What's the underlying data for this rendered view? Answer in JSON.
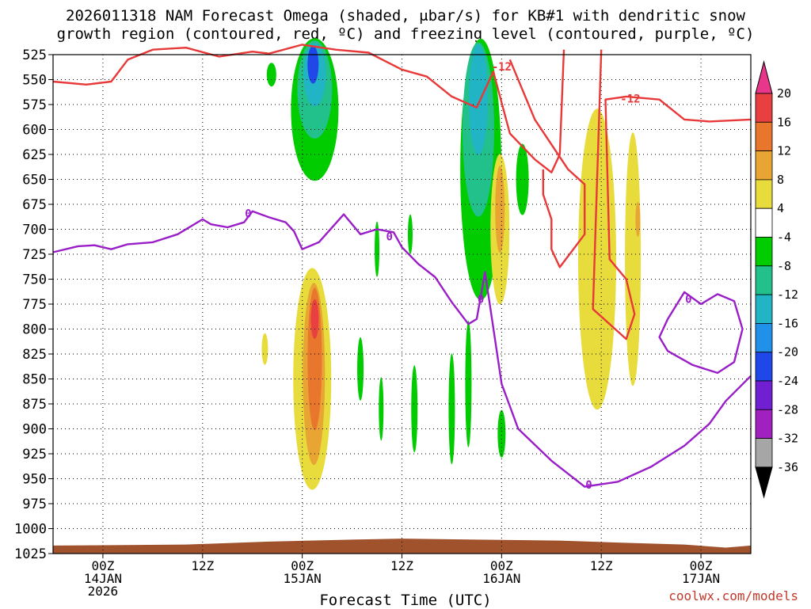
{
  "title_line1": "2026011318 NAM Forecast Omega (shaded, μbar/s) for KB#1 with dendritic snow",
  "title_line2": "growth region (contoured, red, ºC) and freezing level (contoured, purple, ºC)",
  "credit": "coolwx.com/models",
  "chart_data": {
    "type": "heatmap",
    "xlabel": "Forecast Time (UTC)",
    "ylabel": "",
    "y_axis_reversed": true,
    "ylim": [
      525,
      1025
    ],
    "xlim_hours_from_00z_14jan": [
      -6,
      78
    ],
    "grid": true,
    "y_ticks": [
      525,
      550,
      575,
      600,
      625,
      650,
      675,
      700,
      725,
      750,
      775,
      800,
      825,
      850,
      875,
      900,
      925,
      950,
      975,
      1000,
      1025
    ],
    "x_ticks": [
      {
        "hour": 0,
        "line1": "00Z",
        "line2": "14JAN",
        "line3": "2026"
      },
      {
        "hour": 12,
        "line1": "12Z",
        "line2": "",
        "line3": ""
      },
      {
        "hour": 24,
        "line1": "00Z",
        "line2": "15JAN",
        "line3": ""
      },
      {
        "hour": 36,
        "line1": "12Z",
        "line2": "",
        "line3": ""
      },
      {
        "hour": 48,
        "line1": "00Z",
        "line2": "16JAN",
        "line3": ""
      },
      {
        "hour": 60,
        "line1": "12Z",
        "line2": "",
        "line3": ""
      },
      {
        "hour": 72,
        "line1": "00Z",
        "line2": "17JAN",
        "line3": ""
      }
    ],
    "colorbar": {
      "labels": [
        "20",
        "16",
        "12",
        "8",
        "4",
        "-4",
        "-8",
        "-12",
        "-16",
        "-20",
        "-24",
        "-28",
        "-32",
        "-36"
      ],
      "colors": [
        "#e8378a",
        "#e84040",
        "#e8772d",
        "#e8a534",
        "#e8dc3c",
        "#ffffff",
        "#00cc00",
        "#22c08a",
        "#20b4c4",
        "#2090e8",
        "#2048e8",
        "#7020d0",
        "#a020c0",
        "#a6a6a6",
        "#000000"
      ]
    },
    "series": [
      {
        "name": "Freezing level (0 ºC)",
        "color": "#9a1ec8",
        "points": [
          [
            -6,
            723
          ],
          [
            -3,
            717
          ],
          [
            -1,
            716
          ],
          [
            1,
            720
          ],
          [
            3,
            715
          ],
          [
            6,
            713
          ],
          [
            9,
            705
          ],
          [
            12,
            690
          ],
          [
            13,
            695
          ],
          [
            15,
            698
          ],
          [
            17,
            693
          ],
          [
            18,
            682
          ],
          [
            20,
            688
          ],
          [
            22,
            693
          ],
          [
            23,
            702
          ],
          [
            24,
            720
          ],
          [
            26,
            713
          ],
          [
            29,
            685
          ],
          [
            31,
            705
          ],
          [
            33,
            700
          ],
          [
            35,
            703
          ],
          [
            36,
            718
          ],
          [
            38,
            735
          ],
          [
            40,
            748
          ],
          [
            42,
            773
          ],
          [
            44,
            795
          ],
          [
            45,
            790
          ],
          [
            46,
            743
          ],
          [
            48,
            855
          ],
          [
            50,
            900
          ],
          [
            54,
            932
          ],
          [
            58,
            958
          ],
          [
            62,
            953
          ],
          [
            66,
            938
          ],
          [
            70,
            917
          ],
          [
            73,
            895
          ],
          [
            75,
            872
          ],
          [
            78,
            847
          ]
        ]
      },
      {
        "name": "Freezing level loop (0 ºC)",
        "color": "#9a1ec8",
        "points": [
          [
            68,
            790
          ],
          [
            70,
            763
          ],
          [
            72,
            775
          ],
          [
            74,
            765
          ],
          [
            76,
            772
          ],
          [
            77,
            800
          ],
          [
            76,
            833
          ],
          [
            74,
            844
          ],
          [
            71,
            836
          ],
          [
            68,
            822
          ],
          [
            67,
            808
          ],
          [
            68,
            790
          ]
        ]
      },
      {
        "name": "Dendritic growth region (-12 ºC)",
        "color": "#e83838",
        "points": [
          [
            -6,
            552
          ],
          [
            -2,
            555
          ],
          [
            1,
            552
          ],
          [
            3,
            530
          ],
          [
            6,
            520
          ],
          [
            10,
            518
          ],
          [
            14,
            527
          ],
          [
            18,
            522
          ],
          [
            20,
            524
          ],
          [
            24,
            515
          ],
          [
            28,
            520
          ],
          [
            32,
            523
          ],
          [
            36,
            540
          ],
          [
            39,
            547
          ],
          [
            42,
            567
          ],
          [
            45,
            578
          ],
          [
            47,
            542
          ],
          [
            49,
            604
          ],
          [
            52,
            630
          ],
          [
            54,
            643
          ],
          [
            55,
            625
          ],
          [
            55.5,
            520
          ]
        ]
      },
      {
        "name": "Dendritic growth region (-12 ºC)",
        "color": "#e83838",
        "points": [
          [
            60,
            520
          ],
          [
            59,
            780
          ],
          [
            63,
            810
          ],
          [
            64,
            785
          ],
          [
            63,
            750
          ],
          [
            61,
            730
          ],
          [
            60.5,
            570
          ],
          [
            63,
            567
          ],
          [
            67,
            570
          ],
          [
            70,
            590
          ],
          [
            73,
            592
          ],
          [
            78,
            590
          ]
        ]
      },
      {
        "name": "Dendritic growth region (-12 ºC) east",
        "color": "#e83838",
        "points": [
          [
            49,
            530
          ],
          [
            52,
            590
          ],
          [
            56,
            640
          ],
          [
            58,
            655
          ],
          [
            58,
            705
          ],
          [
            55,
            738
          ],
          [
            54,
            720
          ],
          [
            54,
            690
          ],
          [
            53,
            665
          ],
          [
            53,
            640
          ]
        ]
      }
    ],
    "omega_features": [
      {
        "sign": "rise",
        "min_value": -28,
        "x_range": [
          23,
          28
        ],
        "p_range": [
          525,
          655
        ]
      },
      {
        "sign": "rise",
        "min_value": -20,
        "x_range": [
          42,
          48
        ],
        "p_range": [
          525,
          752
        ]
      },
      {
        "sign": "rise",
        "min_value": -8,
        "x_range": [
          49,
          52
        ],
        "p_range": [
          600,
          695
        ]
      },
      {
        "sign": "sink",
        "max_value": 16,
        "x_range": [
          23,
          27
        ],
        "p_range": [
          688,
          985
        ]
      },
      {
        "sign": "sink",
        "max_value": 8,
        "x_range": [
          47,
          49
        ],
        "p_range": [
          610,
          800
        ]
      },
      {
        "sign": "sink",
        "max_value": 8,
        "x_range": [
          57,
          62
        ],
        "p_range": [
          525,
          922
        ]
      }
    ],
    "contour_labels": [
      {
        "text": "0",
        "color": "#9a1ec8",
        "hour": 17.5,
        "p": 684
      },
      {
        "text": "0",
        "color": "#9a1ec8",
        "hour": 34.5,
        "p": 707
      },
      {
        "text": "0",
        "color": "#9a1ec8",
        "hour": 45.5,
        "p": 770
      },
      {
        "text": "0",
        "color": "#9a1ec8",
        "hour": 58.5,
        "p": 956
      },
      {
        "text": "0",
        "color": "#9a1ec8",
        "hour": 70.5,
        "p": 770
      },
      {
        "text": "-12",
        "color": "#e83838",
        "hour": 48,
        "p": 537
      },
      {
        "text": "-12",
        "color": "#e83838",
        "hour": 63.5,
        "p": 569
      }
    ],
    "terrain_color": "#a0522d"
  }
}
